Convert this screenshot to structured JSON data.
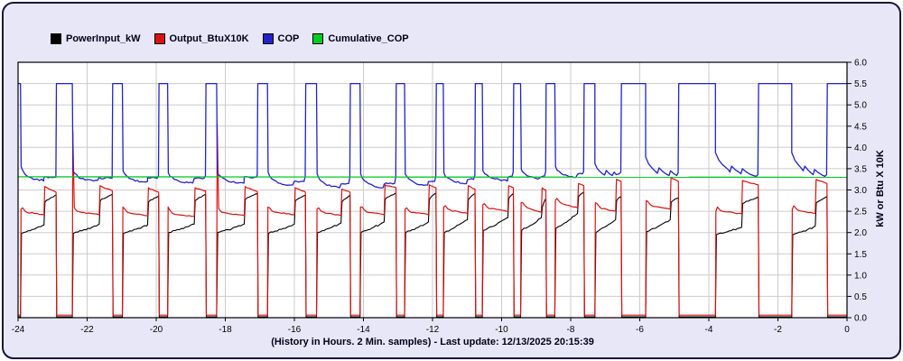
{
  "legend": {
    "items": [
      {
        "label": "PowerInput_kW",
        "series": "power"
      },
      {
        "label": "Output_BtuX10K",
        "series": "output"
      },
      {
        "label": "COP",
        "series": "cop"
      },
      {
        "label": "Cumulative_COP",
        "series": "cumulative"
      }
    ]
  },
  "caption": "(History in Hours. 2 Min. samples) - Last update: 12/13/2025 20:15:39",
  "colors": {
    "background": "#e8e7f8",
    "plot_bg": "#ffffff",
    "grid": "#cccccc",
    "frame": "#000000",
    "power": "#000000",
    "output": "#dd1111",
    "cop": "#2222cc",
    "cumulative": "#00cc22",
    "text": "#00001a",
    "border": "#16163c"
  },
  "chart_data": {
    "type": "line",
    "title": "",
    "ylabel": "kW or Btu X 10K",
    "xlabel": "(History in Hours. 2 Min. samples)",
    "last_update": "12/13/2025 20:15:39",
    "xlim": [
      -24,
      0
    ],
    "ylim": [
      0,
      6
    ],
    "x_ticks": [
      -24,
      -22,
      -20,
      -18,
      -16,
      -14,
      -12,
      -10,
      -8,
      -6,
      -4,
      -2,
      0
    ],
    "y_ticks": [
      0.0,
      0.5,
      1.0,
      1.5,
      2.0,
      2.5,
      3.0,
      3.5,
      4.0,
      4.5,
      5.0,
      5.5,
      6.0
    ],
    "grid": {
      "x_step_hours": 2,
      "y_step": 0.5
    },
    "legend_position": "top-left",
    "series_names": [
      "PowerInput_kW",
      "Output_BtuX10K",
      "COP",
      "Cumulative_COP"
    ],
    "off_levels": {
      "power": 0.02,
      "output": 0.06,
      "cop": 5.5
    },
    "cumulative_cop": {
      "points": [
        [
          -24,
          3.31
        ],
        [
          0,
          3.3
        ]
      ]
    },
    "cycles": [
      {
        "on": -23.93,
        "boost": -23.25,
        "off": -22.9,
        "spike": 2.55,
        "powerA": [
          1.98,
          2.18
        ],
        "powerB": [
          2.72,
          2.88
        ],
        "outA": [
          2.5,
          2.42
        ],
        "outB": [
          3.08,
          2.95
        ],
        "cop": [
          3.55,
          3.22,
          3.3
        ],
        "bump": 0
      },
      {
        "on": -22.43,
        "boost": -21.65,
        "off": -21.27,
        "spike": 4.4,
        "powerA": [
          1.98,
          2.2
        ],
        "powerB": [
          2.75,
          2.9
        ],
        "outA": [
          2.5,
          2.42
        ],
        "outB": [
          3.1,
          2.98
        ],
        "cop": [
          3.45,
          3.2,
          3.28
        ],
        "bump": 0
      },
      {
        "on": -20.98,
        "boost": -20.25,
        "off": -19.93,
        "spike": 2.6,
        "powerA": [
          1.98,
          2.18
        ],
        "powerB": [
          2.72,
          2.86
        ],
        "outA": [
          2.48,
          2.4
        ],
        "outB": [
          3.05,
          2.95
        ],
        "cop": [
          3.45,
          3.18,
          3.28
        ],
        "bump": 0.05
      },
      {
        "on": -19.67,
        "boost": -18.9,
        "off": -18.57,
        "spike": 2.6,
        "powerA": [
          2.0,
          2.2
        ],
        "powerB": [
          2.75,
          2.9
        ],
        "outA": [
          2.45,
          2.38
        ],
        "outB": [
          3.05,
          2.98
        ],
        "cop": [
          3.4,
          3.16,
          3.28
        ],
        "bump": 0.05
      },
      {
        "on": -18.25,
        "boost": -17.45,
        "off": -17.07,
        "spike": 4.55,
        "powerA": [
          2.0,
          2.2
        ],
        "powerB": [
          2.78,
          2.92
        ],
        "outA": [
          2.48,
          2.4
        ],
        "outB": [
          3.08,
          2.96
        ],
        "cop": [
          3.4,
          3.16,
          3.3
        ],
        "bump": 0.05
      },
      {
        "on": -16.78,
        "boost": -16.0,
        "off": -15.68,
        "spike": 2.6,
        "powerA": [
          1.98,
          2.2
        ],
        "powerB": [
          2.75,
          2.88
        ],
        "outA": [
          2.5,
          2.42
        ],
        "outB": [
          3.05,
          2.95
        ],
        "cop": [
          3.42,
          3.1,
          3.2
        ],
        "bump": 0.12
      },
      {
        "on": -15.36,
        "boost": -14.65,
        "off": -14.39,
        "spike": 2.55,
        "powerA": [
          2.0,
          2.22
        ],
        "powerB": [
          2.72,
          2.88
        ],
        "outA": [
          2.5,
          2.4
        ],
        "outB": [
          3.02,
          2.95
        ],
        "cop": [
          3.38,
          3.05,
          3.15
        ],
        "bump": 0.15
      },
      {
        "on": -14.1,
        "boost": -13.4,
        "off": -13.06,
        "spike": 2.6,
        "powerA": [
          2.0,
          2.25
        ],
        "powerB": [
          2.78,
          2.93
        ],
        "outA": [
          2.52,
          2.42
        ],
        "outB": [
          3.12,
          3.05
        ],
        "cop": [
          3.38,
          3.05,
          3.15
        ],
        "bump": 0.15
      },
      {
        "on": -12.81,
        "boost": -12.12,
        "off": -11.9,
        "spike": 2.55,
        "powerA": [
          2.0,
          2.25
        ],
        "powerB": [
          2.78,
          2.93
        ],
        "outA": [
          2.5,
          2.42
        ],
        "outB": [
          3.12,
          3.05
        ],
        "cop": [
          3.38,
          3.1,
          3.2
        ],
        "bump": 0.12
      },
      {
        "on": -11.69,
        "boost": -10.99,
        "off": -10.77,
        "spike": 2.6,
        "powerA": [
          2.0,
          2.3
        ],
        "powerB": [
          2.78,
          2.92
        ],
        "outA": [
          2.55,
          2.45
        ],
        "outB": [
          3.1,
          3.02
        ],
        "cop": [
          3.4,
          3.15,
          3.25
        ],
        "bump": 0.1
      },
      {
        "on": -10.56,
        "boost": -9.82,
        "off": -9.66,
        "spike": 2.65,
        "powerA": [
          2.05,
          2.35
        ],
        "powerB": [
          2.8,
          2.92
        ],
        "outA": [
          2.6,
          2.5
        ],
        "outB": [
          3.1,
          3.05
        ],
        "cop": [
          3.45,
          3.22,
          3.32
        ],
        "bump": 0.1
      },
      {
        "on": -9.45,
        "boost": -8.85,
        "off": -8.72,
        "spike": 2.7,
        "powerA": [
          2.05,
          2.35
        ],
        "powerB": [
          2.6,
          2.8
        ],
        "outA": [
          2.62,
          2.48
        ],
        "outB": [
          3.05,
          3.0
        ],
        "cop": [
          3.48,
          3.26,
          3.33
        ],
        "bump": 0.1
      },
      {
        "on": -8.46,
        "boost": -7.8,
        "off": -7.62,
        "spike": 2.75,
        "powerA": [
          2.1,
          2.45
        ],
        "powerB": [
          2.85,
          2.95
        ],
        "outA": [
          2.72,
          2.58
        ],
        "outB": [
          3.15,
          3.1
        ],
        "cop": [
          3.55,
          3.3,
          3.38
        ],
        "bump": 0.05
      },
      {
        "on": -7.3,
        "boost": -6.7,
        "off": -6.54,
        "spike": 2.7,
        "powerA": [
          2.0,
          2.3
        ],
        "powerB": [
          2.75,
          2.85
        ],
        "outA": [
          2.6,
          2.5
        ],
        "outB": [
          3.25,
          3.2
        ],
        "copPts": [
          [
            0,
            3.62
          ],
          [
            0.07,
            3.5
          ],
          [
            0.14,
            3.44
          ],
          [
            0.22,
            3.38
          ],
          [
            0.28,
            3.35
          ],
          [
            0.33,
            3.46
          ],
          [
            0.42,
            3.38
          ],
          [
            0.5,
            3.34
          ],
          [
            0.56,
            3.42
          ],
          [
            0.62,
            3.36
          ],
          [
            0.7,
            3.38
          ],
          [
            0.75,
            3.42
          ]
        ]
      },
      {
        "on": -5.83,
        "boost": -5.12,
        "off": -4.88,
        "spike": 2.75,
        "powerA": [
          2.02,
          2.3
        ],
        "powerB": [
          2.72,
          2.82
        ],
        "outA": [
          2.65,
          2.55
        ],
        "outB": [
          3.3,
          3.2
        ],
        "copPts": [
          [
            0,
            3.78
          ],
          [
            0.08,
            3.62
          ],
          [
            0.18,
            3.52
          ],
          [
            0.28,
            3.44
          ],
          [
            0.34,
            3.39
          ],
          [
            0.39,
            3.52
          ],
          [
            0.5,
            3.43
          ],
          [
            0.6,
            3.37
          ],
          [
            0.68,
            3.34
          ],
          [
            0.72,
            3.45
          ],
          [
            0.82,
            3.38
          ],
          [
            0.9,
            3.34
          ],
          [
            0.94,
            3.4
          ]
        ]
      },
      {
        "on": -3.81,
        "boost": -3.05,
        "off": -2.57,
        "spike": 2.5,
        "powerA": [
          1.95,
          2.12
        ],
        "powerB": [
          2.68,
          2.84
        ],
        "outA": [
          2.52,
          2.44
        ],
        "outB": [
          3.22,
          3.12
        ],
        "copPts": [
          [
            0,
            3.88
          ],
          [
            0.1,
            3.7
          ],
          [
            0.2,
            3.6
          ],
          [
            0.3,
            3.53
          ],
          [
            0.38,
            3.47
          ],
          [
            0.42,
            3.42
          ],
          [
            0.47,
            3.56
          ],
          [
            0.58,
            3.47
          ],
          [
            0.68,
            3.42
          ],
          [
            0.74,
            3.38
          ],
          [
            0.78,
            3.5
          ],
          [
            0.9,
            3.42
          ],
          [
            1.0,
            3.37
          ],
          [
            1.1,
            3.34
          ],
          [
            1.18,
            3.32
          ],
          [
            1.23,
            3.36
          ]
        ]
      },
      {
        "on": -1.6,
        "boost": -0.92,
        "off": -0.58,
        "spike": 2.55,
        "powerA": [
          1.95,
          2.15
        ],
        "powerB": [
          2.7,
          2.85
        ],
        "outA": [
          2.55,
          2.45
        ],
        "outB": [
          3.25,
          3.15
        ],
        "copPts": [
          [
            0,
            3.88
          ],
          [
            0.09,
            3.7
          ],
          [
            0.18,
            3.6
          ],
          [
            0.27,
            3.52
          ],
          [
            0.33,
            3.45
          ],
          [
            0.38,
            3.56
          ],
          [
            0.48,
            3.46
          ],
          [
            0.56,
            3.4
          ],
          [
            0.62,
            3.36
          ],
          [
            0.66,
            3.48
          ],
          [
            0.78,
            3.4
          ],
          [
            0.88,
            3.35
          ],
          [
            0.96,
            3.32
          ],
          [
            1.01,
            3.36
          ]
        ]
      }
    ]
  }
}
